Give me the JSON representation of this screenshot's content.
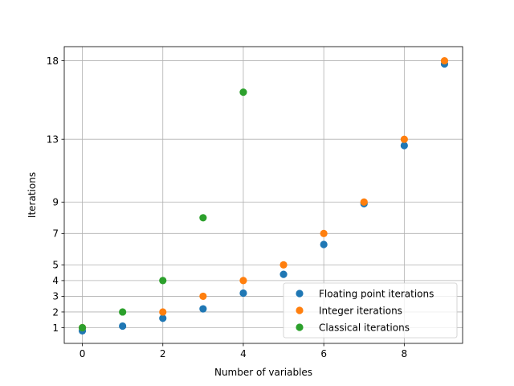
{
  "chart_data": {
    "type": "scatter",
    "title": "",
    "xlabel": "Number of variables",
    "ylabel": "Iterations",
    "xlim": [
      -0.45,
      9.45
    ],
    "ylim": [
      0.0,
      18.9
    ],
    "xticks": [
      0,
      2,
      4,
      6,
      8
    ],
    "yticks": [
      1,
      2,
      3,
      4,
      5,
      7,
      9,
      13,
      18
    ],
    "grid": true,
    "legend": "lower-right",
    "series": [
      {
        "name": "Floating point iterations",
        "color": "#1f77b4",
        "x": [
          0,
          1,
          2,
          3,
          4,
          5,
          6,
          7,
          8,
          9
        ],
        "y": [
          0.8,
          1.1,
          1.6,
          2.2,
          3.2,
          4.4,
          6.3,
          8.9,
          12.6,
          17.8
        ]
      },
      {
        "name": "Integer iterations",
        "color": "#ff7f0e",
        "x": [
          0,
          2,
          3,
          4,
          5,
          6,
          7,
          8,
          9
        ],
        "y": [
          1,
          2,
          3,
          4,
          5,
          7,
          9,
          13,
          18
        ]
      },
      {
        "name": "Classical iterations",
        "color": "#2ca02c",
        "x": [
          0,
          1,
          2,
          3,
          4
        ],
        "y": [
          1,
          2,
          4,
          8,
          16
        ]
      }
    ]
  }
}
